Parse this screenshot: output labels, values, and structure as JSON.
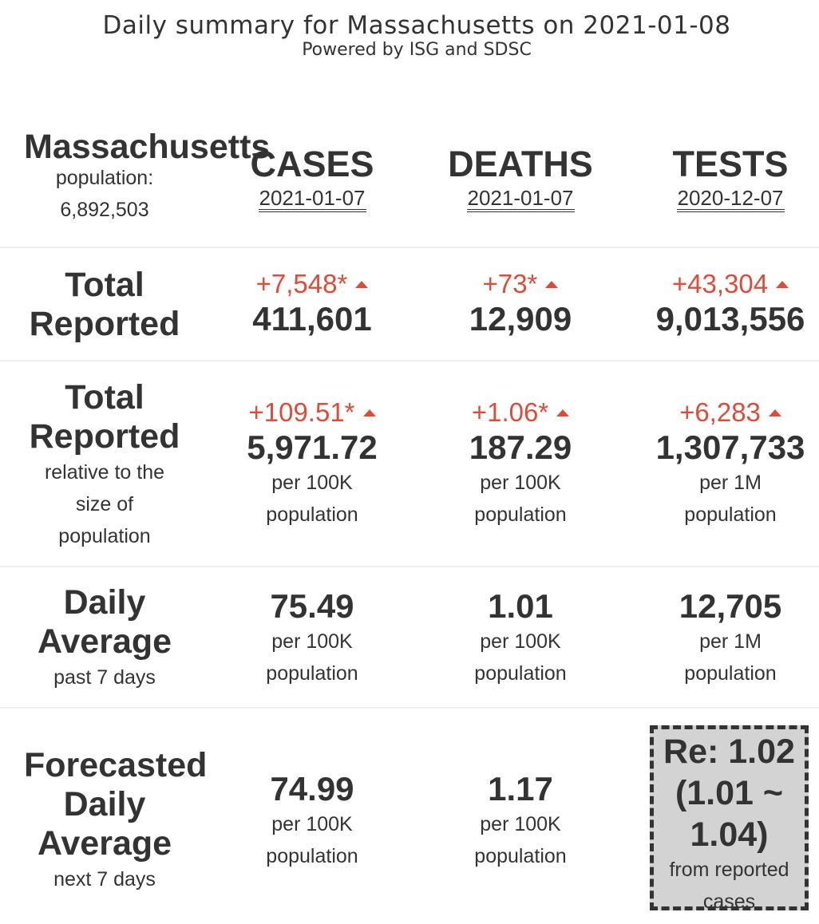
{
  "header": {
    "title": "Daily summary for Massachusetts on 2021-01-08",
    "subtitle": "Powered by ISG and SDSC"
  },
  "state": {
    "name": "Massachusetts",
    "population_label": "population:",
    "population_value": "6,892,503"
  },
  "columns": [
    {
      "heading": "CASES",
      "date": "2021-01-07"
    },
    {
      "heading": "DEATHS",
      "date": "2021-01-07"
    },
    {
      "heading": "TESTS",
      "date": "2020-12-07"
    }
  ],
  "rows": {
    "total_reported": {
      "label_line1": "Total",
      "label_line2": "Reported",
      "cells": [
        {
          "delta": "+7,548*",
          "value": "411,601"
        },
        {
          "delta": "+73*",
          "value": "12,909"
        },
        {
          "delta": "+43,304",
          "value": "9,013,556"
        }
      ]
    },
    "total_relative": {
      "label_line1": "Total",
      "label_line2": "Reported",
      "sub_line1": "relative to the",
      "sub_line2": "size of",
      "sub_line3": "population",
      "cells": [
        {
          "delta": "+109.51*",
          "value": "5,971.72",
          "unit_line1": "per 100K",
          "unit_line2": "population"
        },
        {
          "delta": "+1.06*",
          "value": "187.29",
          "unit_line1": "per 100K",
          "unit_line2": "population"
        },
        {
          "delta": "+6,283",
          "value": "1,307,733",
          "unit_line1": "per 1M",
          "unit_line2": "population"
        }
      ]
    },
    "daily_average": {
      "label_line1": "Daily",
      "label_line2": "Average",
      "sub": "past 7 days",
      "cells": [
        {
          "value": "75.49",
          "unit_line1": "per 100K",
          "unit_line2": "population"
        },
        {
          "value": "1.01",
          "unit_line1": "per 100K",
          "unit_line2": "population"
        },
        {
          "value": "12,705",
          "unit_line1": "per 1M",
          "unit_line2": "population"
        }
      ]
    },
    "forecast": {
      "label_line1": "Forecasted",
      "label_line2": "Daily",
      "label_line3": "Average",
      "sub": "next 7 days",
      "cells": [
        {
          "value": "74.99",
          "unit_line1": "per 100K",
          "unit_line2": "population"
        },
        {
          "value": "1.17",
          "unit_line1": "per 100K",
          "unit_line2": "population"
        }
      ],
      "re": {
        "line1": "Re: 1.02",
        "line2": "(1.01 ~",
        "line3": "1.04)",
        "sub_line1": "from reported",
        "sub_line2": "cases"
      }
    }
  },
  "colors": {
    "increase": "#dd4b39",
    "text": "#333333",
    "re_box_bg": "#d3d3d3"
  }
}
